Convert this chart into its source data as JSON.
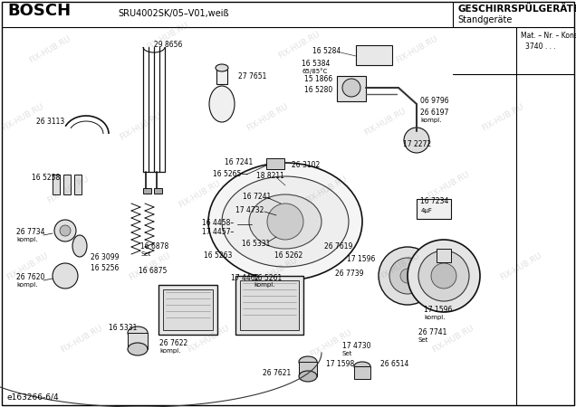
{
  "title_brand": "BOSCH",
  "model_text": "SRU4002SK/05–V01,weiß",
  "right_title_line1": "GESCHIRRSPÜLGERÄTE",
  "right_title_line2": "Standgeräte",
  "mat_nr_label": "Mat. – Nr. – Konstante",
  "mat_nr_value": "3740 . . .",
  "bottom_left_text": "e163266-6/4",
  "watermark_text": "FIX-HUB.RU",
  "bg_color": "#ffffff",
  "border_color": "#000000",
  "text_color": "#000000",
  "fig_width": 6.36,
  "fig_height": 4.5,
  "dpi": 100
}
